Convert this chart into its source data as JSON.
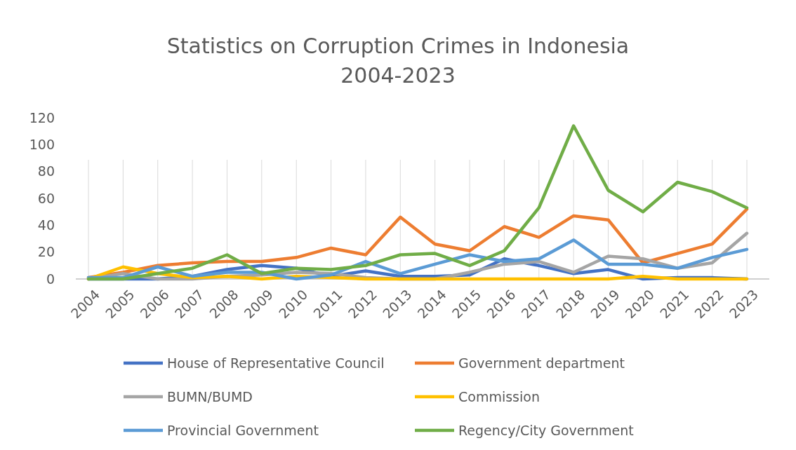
{
  "chart_data": {
    "type": "line",
    "title": "Statistics on Corruption Crimes in Indonesia\n2004-2023",
    "categories": [
      "2004",
      "2005",
      "2006",
      "2007",
      "2008",
      "2009",
      "2010",
      "2011",
      "2012",
      "2013",
      "2014",
      "2015",
      "2016",
      "2017",
      "2018",
      "2019",
      "2020",
      "2021",
      "2022",
      "2023"
    ],
    "series": [
      {
        "name": "House of Representative Council",
        "color": "#4472c4",
        "values": [
          0,
          0,
          0,
          2,
          7,
          10,
          8,
          2,
          6,
          2,
          2,
          3,
          15,
          10,
          4,
          7,
          0,
          1,
          1,
          0
        ]
      },
      {
        "name": "Government department",
        "color": "#ed7d31",
        "values": [
          1,
          5,
          10,
          12,
          13,
          13,
          16,
          23,
          18,
          46,
          26,
          21,
          39,
          31,
          47,
          44,
          12,
          19,
          26,
          52
        ]
      },
      {
        "name": "BUMN/BUMD",
        "color": "#a5a5a5",
        "values": [
          0,
          4,
          0,
          0,
          2,
          3,
          5,
          4,
          1,
          0,
          0,
          5,
          11,
          13,
          5,
          17,
          15,
          8,
          12,
          34
        ]
      },
      {
        "name": "Commission",
        "color": "#ffc000",
        "values": [
          0,
          9,
          4,
          1,
          2,
          0,
          2,
          1,
          0,
          0,
          0,
          0,
          0,
          0,
          0,
          0,
          2,
          0,
          0,
          0
        ]
      },
      {
        "name": "Provincial Government",
        "color": "#5b9bd5",
        "values": [
          1,
          1,
          9,
          2,
          5,
          5,
          0,
          3,
          13,
          4,
          11,
          18,
          13,
          15,
          29,
          11,
          11,
          8,
          16,
          22
        ]
      },
      {
        "name": "Regency/City Government",
        "color": "#70ad47",
        "values": [
          0,
          0,
          4,
          8,
          18,
          4,
          8,
          7,
          10,
          18,
          19,
          10,
          21,
          53,
          114,
          66,
          50,
          72,
          65,
          53
        ]
      }
    ],
    "ylim": [
      0,
      120
    ],
    "yticks": [
      0,
      20,
      40,
      60,
      80,
      100,
      120
    ],
    "grid": "x",
    "legend": "bottom",
    "marker": "none",
    "line_style": "solid"
  }
}
